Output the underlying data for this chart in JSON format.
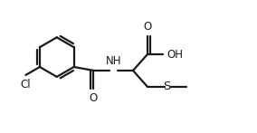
{
  "bg_color": "#ffffff",
  "line_color": "#1a1a1a",
  "line_width": 1.6,
  "font_size": 8.5,
  "figsize": [
    2.84,
    1.47
  ],
  "dpi": 100,
  "xlim": [
    0.0,
    2.84
  ],
  "ylim": [
    0.0,
    1.47
  ]
}
